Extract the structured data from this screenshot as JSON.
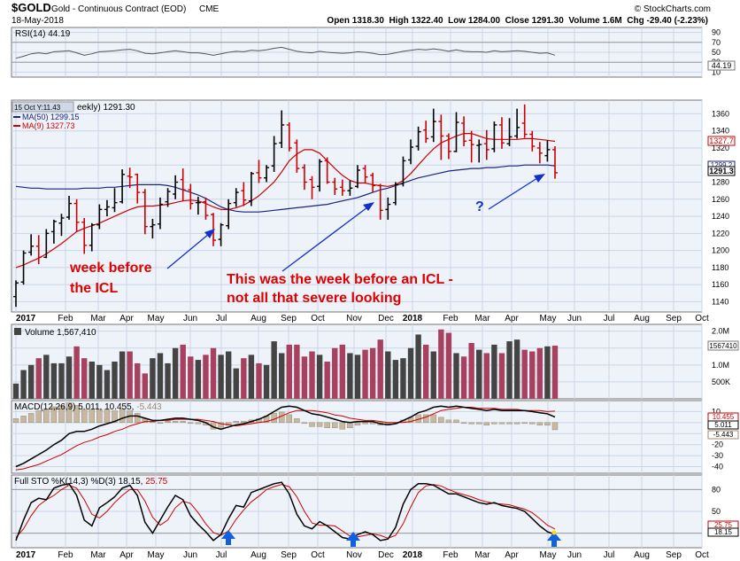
{
  "header": {
    "symbol": "$GOLD",
    "name": "Gold - Continuous Contract (EOD)",
    "exchange": "CME",
    "date": "18-May-2018",
    "watermark": "© StockCharts.com",
    "ohlc_line": "Open 1318.30  High 1322.40  Low 1284.00  Close 1291.30  Volume 1.6M  Chg -29.40 (-2.23%)"
  },
  "colors": {
    "panel_bg": "#eef3fa",
    "grid": "#c9d6e8",
    "up_bar": "#000000",
    "down_bar": "#cc0000",
    "ma50": "#1a237e",
    "ma9": "#cc0000",
    "rsi": "#555555",
    "volume_up": "#444444",
    "volume_down": "#a84060",
    "macd_line": "#000000",
    "signal_line": "#cc0000",
    "hist": "#c8b8a0",
    "sto_k": "#000000",
    "sto_d": "#cc0000",
    "annotation_red": "#e00000",
    "arrow_blue": "#1030d0"
  },
  "panels": {
    "rsi": {
      "label": "RSI(14) 44.19",
      "ticks": [
        "90",
        "70",
        "50",
        "30",
        "10"
      ],
      "last": "44.19"
    },
    "price": {
      "date_tag": "15 Oct Y:11.43",
      "title_suffix": "eekly) 1291.30",
      "ma50_label": "MA(50) 1299.15",
      "ma9_label": "MA(9) 1327.73",
      "ticks": [
        "1360",
        "1340",
        "1320",
        "1300",
        "1280",
        "1260",
        "1240",
        "1220",
        "1200",
        "1180",
        "1160",
        "1140"
      ],
      "tags": {
        "ma9": "1327.7",
        "ma50": "1299.2",
        "close": "1291.3"
      }
    },
    "volume": {
      "label": "Volume 1,567,410",
      "ticks": [
        "2.0M",
        "1.5M",
        "1.0M",
        "500K"
      ],
      "tag": "1567410"
    },
    "macd": {
      "label": "MACD(12,26,9) 5.011, 10.455, -5.443",
      "label_main": "MACD(12,26,9) 5.011, 10.455, ",
      "label_hist": "-5.443",
      "ticks": [
        "10",
        "0",
        "-10",
        "-20",
        "-30",
        "-40"
      ],
      "tags": [
        "10.455",
        "5.011",
        "-5.443"
      ]
    },
    "sto": {
      "label": "Full STO %K(14,3) %D(3) 18.15, 25.75",
      "label_k": "Full STO %K(14,3) %D(3) 18.15, ",
      "label_d": "25.75",
      "ticks": [
        "80",
        "50",
        "20"
      ],
      "tags": [
        "25.75",
        "18.15"
      ]
    }
  },
  "x_axis": [
    "2017",
    "Feb",
    "Mar",
    "Apr",
    "May",
    "Jun",
    "Jul",
    "Aug",
    "Sep",
    "Oct",
    "Nov",
    "Dec",
    "2018",
    "Feb",
    "Mar",
    "Apr",
    "May",
    "Jun",
    "Jul",
    "Aug",
    "Sep",
    "Oct"
  ],
  "annotations": {
    "left_note": "week before\nthe ICL",
    "center_note": "This was the week before an ICL -\nnot all that severe looking",
    "question": "?"
  },
  "chart_data": {
    "type": "bar",
    "title": "$GOLD Gold - Continuous Contract (EOD) CME",
    "period": "weekly",
    "x": [
      "2017-01-06",
      "2017-01-13",
      "2017-01-20",
      "2017-01-27",
      "2017-02-03",
      "2017-02-10",
      "2017-02-17",
      "2017-02-24",
      "2017-03-03",
      "2017-03-10",
      "2017-03-17",
      "2017-03-24",
      "2017-03-31",
      "2017-04-07",
      "2017-04-14",
      "2017-04-21",
      "2017-04-28",
      "2017-05-05",
      "2017-05-12",
      "2017-05-19",
      "2017-05-26",
      "2017-06-02",
      "2017-06-09",
      "2017-06-16",
      "2017-06-23",
      "2017-06-30",
      "2017-07-07",
      "2017-07-14",
      "2017-07-21",
      "2017-07-28",
      "2017-08-04",
      "2017-08-11",
      "2017-08-18",
      "2017-08-25",
      "2017-09-01",
      "2017-09-08",
      "2017-09-15",
      "2017-09-22",
      "2017-09-29",
      "2017-10-06",
      "2017-10-13",
      "2017-10-20",
      "2017-10-27",
      "2017-11-03",
      "2017-11-10",
      "2017-11-17",
      "2017-11-24",
      "2017-12-01",
      "2017-12-08",
      "2017-12-15",
      "2017-12-22",
      "2017-12-29",
      "2018-01-05",
      "2018-01-12",
      "2018-01-19",
      "2018-01-26",
      "2018-02-02",
      "2018-02-09",
      "2018-02-16",
      "2018-02-23",
      "2018-03-02",
      "2018-03-09",
      "2018-03-16",
      "2018-03-23",
      "2018-03-30",
      "2018-04-06",
      "2018-04-13",
      "2018-04-20",
      "2018-04-27",
      "2018-05-04",
      "2018-05-11",
      "2018-05-18"
    ],
    "series": [
      {
        "name": "open",
        "values": [
          1146,
          1163,
          1198,
          1205,
          1192,
          1222,
          1232,
          1239,
          1255,
          1233,
          1206,
          1230,
          1248,
          1250,
          1257,
          1287,
          1289,
          1268,
          1228,
          1231,
          1257,
          1266,
          1283,
          1271,
          1256,
          1257,
          1242,
          1213,
          1229,
          1256,
          1270,
          1258,
          1291,
          1285,
          1299,
          1326,
          1347,
          1326,
          1297,
          1283,
          1275,
          1305,
          1280,
          1274,
          1270,
          1275,
          1296,
          1288,
          1276,
          1248,
          1256,
          1278,
          1306,
          1322,
          1341,
          1333,
          1351,
          1334,
          1316,
          1349,
          1329,
          1323,
          1325,
          1319,
          1347,
          1325,
          1334,
          1349,
          1336,
          1320,
          1311,
          1318
        ]
      },
      {
        "name": "high",
        "values": [
          1165,
          1200,
          1219,
          1218,
          1225,
          1236,
          1243,
          1264,
          1260,
          1238,
          1232,
          1254,
          1259,
          1273,
          1295,
          1297,
          1290,
          1272,
          1237,
          1262,
          1273,
          1288,
          1296,
          1278,
          1263,
          1262,
          1244,
          1232,
          1260,
          1273,
          1280,
          1292,
          1306,
          1300,
          1334,
          1364,
          1350,
          1330,
          1301,
          1287,
          1307,
          1309,
          1285,
          1283,
          1282,
          1300,
          1300,
          1291,
          1278,
          1262,
          1280,
          1310,
          1330,
          1345,
          1352,
          1366,
          1359,
          1337,
          1362,
          1357,
          1340,
          1330,
          1341,
          1351,
          1356,
          1355,
          1366,
          1371,
          1340,
          1327,
          1329,
          1322
        ]
      },
      {
        "name": "low",
        "values": [
          1134,
          1160,
          1194,
          1184,
          1191,
          1208,
          1217,
          1236,
          1222,
          1196,
          1199,
          1225,
          1240,
          1245,
          1255,
          1273,
          1255,
          1219,
          1214,
          1225,
          1251,
          1260,
          1258,
          1248,
          1242,
          1236,
          1205,
          1205,
          1225,
          1251,
          1252,
          1252,
          1279,
          1280,
          1292,
          1320,
          1316,
          1291,
          1271,
          1260,
          1269,
          1278,
          1265,
          1264,
          1264,
          1273,
          1279,
          1268,
          1236,
          1236,
          1253,
          1275,
          1301,
          1317,
          1326,
          1327,
          1306,
          1307,
          1315,
          1322,
          1303,
          1303,
          1306,
          1315,
          1319,
          1322,
          1331,
          1332,
          1316,
          1302,
          1304,
          1284
        ]
      },
      {
        "name": "close",
        "values": [
          1162,
          1197,
          1205,
          1192,
          1220,
          1234,
          1238,
          1255,
          1233,
          1206,
          1230,
          1248,
          1251,
          1256,
          1289,
          1286,
          1268,
          1228,
          1230,
          1254,
          1269,
          1280,
          1271,
          1255,
          1256,
          1241,
          1212,
          1230,
          1255,
          1268,
          1259,
          1290,
          1285,
          1297,
          1325,
          1347,
          1320,
          1296,
          1280,
          1274,
          1304,
          1280,
          1272,
          1270,
          1273,
          1294,
          1286,
          1276,
          1247,
          1254,
          1277,
          1305,
          1321,
          1339,
          1331,
          1351,
          1334,
          1316,
          1350,
          1328,
          1324,
          1324,
          1318,
          1347,
          1326,
          1333,
          1344,
          1336,
          1322,
          1314,
          1318,
          1291
        ]
      },
      {
        "name": "MA(50)",
        "values": [
          1275,
          1274,
          1273,
          1273,
          1272,
          1272,
          1272,
          1272,
          1272,
          1273,
          1273,
          1273,
          1274,
          1274,
          1275,
          1276,
          1277,
          1277,
          1277,
          1277,
          1276,
          1274,
          1271,
          1268,
          1265,
          1261,
          1256,
          1251,
          1248,
          1246,
          1245,
          1245,
          1245,
          1246,
          1247,
          1248,
          1249,
          1250,
          1251,
          1252,
          1253,
          1254,
          1256,
          1258,
          1260,
          1262,
          1265,
          1268,
          1271,
          1273,
          1276,
          1279,
          1282,
          1285,
          1287,
          1289,
          1291,
          1293,
          1294,
          1295,
          1296,
          1296,
          1297,
          1297,
          1298,
          1299,
          1299,
          1300,
          1300,
          1300,
          1300,
          1299.15
        ]
      },
      {
        "name": "MA(9)",
        "values": [
          1180,
          1183,
          1187,
          1191,
          1196,
          1202,
          1208,
          1215,
          1222,
          1226,
          1229,
          1232,
          1236,
          1240,
          1244,
          1248,
          1251,
          1252,
          1252,
          1253,
          1254,
          1256,
          1258,
          1259,
          1258,
          1255,
          1251,
          1248,
          1248,
          1250,
          1253,
          1258,
          1264,
          1272,
          1280,
          1292,
          1305,
          1313,
          1318,
          1318,
          1314,
          1305,
          1296,
          1288,
          1282,
          1279,
          1279,
          1277,
          1276,
          1275,
          1277,
          1282,
          1290,
          1300,
          1310,
          1319,
          1326,
          1330,
          1334,
          1337,
          1337,
          1334,
          1331,
          1330,
          1330,
          1330,
          1330,
          1331,
          1331,
          1330,
          1329,
          1327.73
        ]
      },
      {
        "name": "Volume (M)",
        "values": [
          0.45,
          0.85,
          1.0,
          1.2,
          1.3,
          1.05,
          1.05,
          1.25,
          1.55,
          1.2,
          1.1,
          1.0,
          0.85,
          1.1,
          1.4,
          1.4,
          1.05,
          0.75,
          1.2,
          1.35,
          1.05,
          1.5,
          1.6,
          1.25,
          1.15,
          1.3,
          1.5,
          1.3,
          1.4,
          0.9,
          1.2,
          1.3,
          1.05,
          1.0,
          1.7,
          1.35,
          1.6,
          1.6,
          1.25,
          1.4,
          1.3,
          1.1,
          1.5,
          1.6,
          1.35,
          1.3,
          1.45,
          1.5,
          1.75,
          1.4,
          1.15,
          1.2,
          1.5,
          1.9,
          1.6,
          1.4,
          2.05,
          1.95,
          1.35,
          1.25,
          1.65,
          1.45,
          1.35,
          1.6,
          1.35,
          1.7,
          1.75,
          1.45,
          1.4,
          1.5,
          1.55,
          1.57
        ]
      },
      {
        "name": "RSI(14)",
        "values": [
          38,
          42,
          47,
          49,
          47,
          51,
          52,
          53,
          49,
          44,
          47,
          51,
          52,
          53,
          55,
          56,
          53,
          48,
          47,
          49,
          51,
          53,
          51,
          49,
          49,
          47,
          44,
          47,
          50,
          52,
          51,
          54,
          53,
          55,
          58,
          60,
          56,
          52,
          50,
          49,
          52,
          50,
          49,
          48,
          49,
          51,
          50,
          48,
          45,
          46,
          49,
          52,
          54,
          56,
          55,
          57,
          55,
          52,
          55,
          52,
          51,
          51,
          50,
          53,
          51,
          52,
          53,
          52,
          50,
          48,
          49,
          44.19
        ]
      },
      {
        "name": "MACD",
        "values": [
          -40,
          -37,
          -33,
          -29,
          -25,
          -20,
          -16,
          -10,
          -8,
          -8,
          -6,
          -3,
          -1,
          1,
          4,
          6,
          6,
          4,
          2,
          2,
          3,
          4,
          4,
          3,
          2,
          0,
          -4,
          -6,
          -4,
          -2,
          -1,
          1,
          3,
          6,
          10,
          14,
          15,
          14,
          11,
          8,
          7,
          5,
          3,
          1,
          0,
          1,
          1,
          1,
          -1,
          -2,
          -1,
          2,
          5,
          9,
          11,
          14,
          15,
          14,
          15,
          14,
          13,
          12,
          11,
          12,
          11,
          11,
          11,
          11,
          10,
          9,
          8,
          5.011
        ]
      },
      {
        "name": "Signal",
        "values": [
          -43,
          -42,
          -40,
          -38,
          -35,
          -32,
          -29,
          -25,
          -21,
          -18,
          -16,
          -13,
          -11,
          -8,
          -6,
          -3,
          -1,
          1,
          1,
          2,
          2,
          3,
          3,
          3,
          3,
          2,
          1,
          -1,
          -2,
          -3,
          -2,
          -1,
          0,
          1,
          3,
          6,
          9,
          11,
          11,
          11,
          10,
          9,
          7,
          6,
          4,
          3,
          2,
          2,
          1,
          0,
          0,
          0,
          1,
          3,
          5,
          8,
          11,
          12,
          13,
          14,
          14,
          13,
          13,
          13,
          12,
          12,
          12,
          11,
          11,
          11,
          10,
          10.455
        ]
      },
      {
        "name": "%K",
        "values": [
          10,
          38,
          62,
          68,
          66,
          82,
          86,
          88,
          72,
          38,
          30,
          55,
          62,
          70,
          82,
          86,
          72,
          35,
          20,
          38,
          56,
          72,
          66,
          44,
          32,
          22,
          10,
          18,
          40,
          58,
          56,
          76,
          80,
          84,
          88,
          90,
          74,
          46,
          30,
          26,
          36,
          30,
          22,
          14,
          12,
          18,
          22,
          18,
          10,
          12,
          28,
          60,
          80,
          88,
          88,
          86,
          80,
          74,
          74,
          70,
          66,
          62,
          60,
          62,
          58,
          56,
          54,
          50,
          40,
          30,
          22,
          18.15
        ]
      },
      {
        "name": "%D",
        "values": [
          14,
          26,
          44,
          58,
          66,
          72,
          80,
          86,
          82,
          66,
          46,
          41,
          50,
          62,
          72,
          80,
          80,
          64,
          42,
          31,
          38,
          55,
          64,
          61,
          48,
          33,
          21,
          17,
          23,
          39,
          52,
          63,
          71,
          80,
          84,
          87,
          84,
          70,
          50,
          34,
          31,
          31,
          30,
          23,
          16,
          15,
          17,
          19,
          17,
          13,
          17,
          33,
          56,
          76,
          85,
          87,
          85,
          80,
          76,
          73,
          70,
          66,
          63,
          61,
          60,
          59,
          56,
          53,
          48,
          40,
          31,
          25.75
        ]
      }
    ],
    "ylim": [
      1128,
      1376
    ],
    "xlabel": "",
    "ylabel": "",
    "grid": true
  }
}
